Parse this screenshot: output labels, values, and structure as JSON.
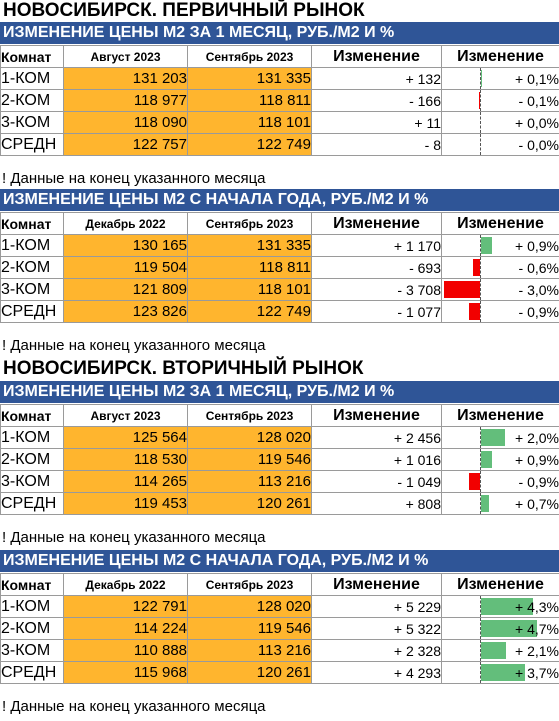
{
  "sections": [
    {
      "title": "НОВОСИБИРСК. ПЕРВИЧНЫЙ РЫНОК",
      "tables": [
        {
          "subtitle": "ИЗМЕНЕНИЕ ЦЕНЫ М2 ЗА 1 МЕСЯЦ, РУБ./М2 И %",
          "headers": [
            "Комнат",
            "Август 2023",
            "Сентябрь 2023",
            "Изменение",
            "Изменение"
          ],
          "rows": [
            {
              "room": "1-КОМ",
              "v1": "131 203",
              "v2": "131 335",
              "delta": "+ 132",
              "pct": "+ 0,1%",
              "pct_value": 0.1
            },
            {
              "room": "2-КОМ",
              "v1": "118 977",
              "v2": "118 811",
              "delta": "- 166",
              "pct": "- 0,1%",
              "pct_value": -0.1
            },
            {
              "room": "3-КОМ",
              "v1": "118 090",
              "v2": "118 101",
              "delta": "+ 11",
              "pct": "+ 0,0%",
              "pct_value": 0.0
            },
            {
              "room": "СРЕДН",
              "v1": "122 757",
              "v2": "122 749",
              "delta": "- 8",
              "pct": "- 0,0%",
              "pct_value": -0.0
            }
          ],
          "note": "! Данные на конец указанного месяца"
        },
        {
          "subtitle": "ИЗМЕНЕНИЕ ЦЕНЫ М2 С НАЧАЛА ГОДА, РУБ./М2 И %",
          "headers": [
            "Комнат",
            "Декабрь 2022",
            "Сентябрь 2023",
            "Изменение",
            "Изменение"
          ],
          "rows": [
            {
              "room": "1-КОМ",
              "v1": "130 165",
              "v2": "131 335",
              "delta": "+ 1 170",
              "pct": "+ 0,9%",
              "pct_value": 0.9
            },
            {
              "room": "2-КОМ",
              "v1": "119 504",
              "v2": "118 811",
              "delta": "- 693",
              "pct": "- 0,6%",
              "pct_value": -0.6
            },
            {
              "room": "3-КОМ",
              "v1": "121 809",
              "v2": "118 101",
              "delta": "- 3 708",
              "pct": "- 3,0%",
              "pct_value": -3.0
            },
            {
              "room": "СРЕДН",
              "v1": "123 826",
              "v2": "122 749",
              "delta": "- 1 077",
              "pct": "- 0,9%",
              "pct_value": -0.9
            }
          ],
          "note": "! Данные на конец указанного месяца"
        }
      ]
    },
    {
      "title": "НОВОСИБИРСК. ВТОРИЧНЫЙ РЫНОК",
      "tables": [
        {
          "subtitle": "ИЗМЕНЕНИЕ ЦЕНЫ М2 ЗА 1 МЕСЯЦ, РУБ./М2 И %",
          "headers": [
            "Комнат",
            "Август 2023",
            "Сентябрь 2023",
            "Изменение",
            "Изменение"
          ],
          "rows": [
            {
              "room": "1-КОМ",
              "v1": "125 564",
              "v2": "128 020",
              "delta": "+ 2 456",
              "pct": "+ 2,0%",
              "pct_value": 2.0
            },
            {
              "room": "2-КОМ",
              "v1": "118 530",
              "v2": "119 546",
              "delta": "+ 1 016",
              "pct": "+ 0,9%",
              "pct_value": 0.9
            },
            {
              "room": "3-КОМ",
              "v1": "114 265",
              "v2": "113 216",
              "delta": "- 1 049",
              "pct": "- 0,9%",
              "pct_value": -0.9
            },
            {
              "room": "СРЕДН",
              "v1": "119 453",
              "v2": "120 261",
              "delta": "+ 808",
              "pct": "+ 0,7%",
              "pct_value": 0.7
            }
          ],
          "note": "! Данные на конец указанного месяца"
        },
        {
          "subtitle": "ИЗМЕНЕНИЕ ЦЕНЫ М2 С НАЧАЛА ГОДА, РУБ./М2 И %",
          "headers": [
            "Комнат",
            "Декабрь 2022",
            "Сентябрь 2023",
            "Изменение",
            "Изменение"
          ],
          "rows": [
            {
              "room": "1-КОМ",
              "v1": "122 791",
              "v2": "128 020",
              "delta": "+ 5 229",
              "pct": "+ 4,3%",
              "pct_value": 4.3
            },
            {
              "room": "2-КОМ",
              "v1": "114 224",
              "v2": "119 546",
              "delta": "+ 5 322",
              "pct": "+ 4,7%",
              "pct_value": 4.7
            },
            {
              "room": "3-КОМ",
              "v1": "110 888",
              "v2": "113 216",
              "delta": "+ 2 328",
              "pct": "+ 2,1%",
              "pct_value": 2.1
            },
            {
              "room": "СРЕДН",
              "v1": "115 968",
              "v2": "120 261",
              "delta": "+ 4 293",
              "pct": "+ 3,7%",
              "pct_value": 3.7
            }
          ],
          "note": "! Данные на конец указанного месяца"
        }
      ]
    }
  ],
  "colors": {
    "header_band": "#2f5597",
    "value_fill": "#ffb52e",
    "bar_positive": "#63be7b",
    "bar_negative": "#f20000"
  }
}
